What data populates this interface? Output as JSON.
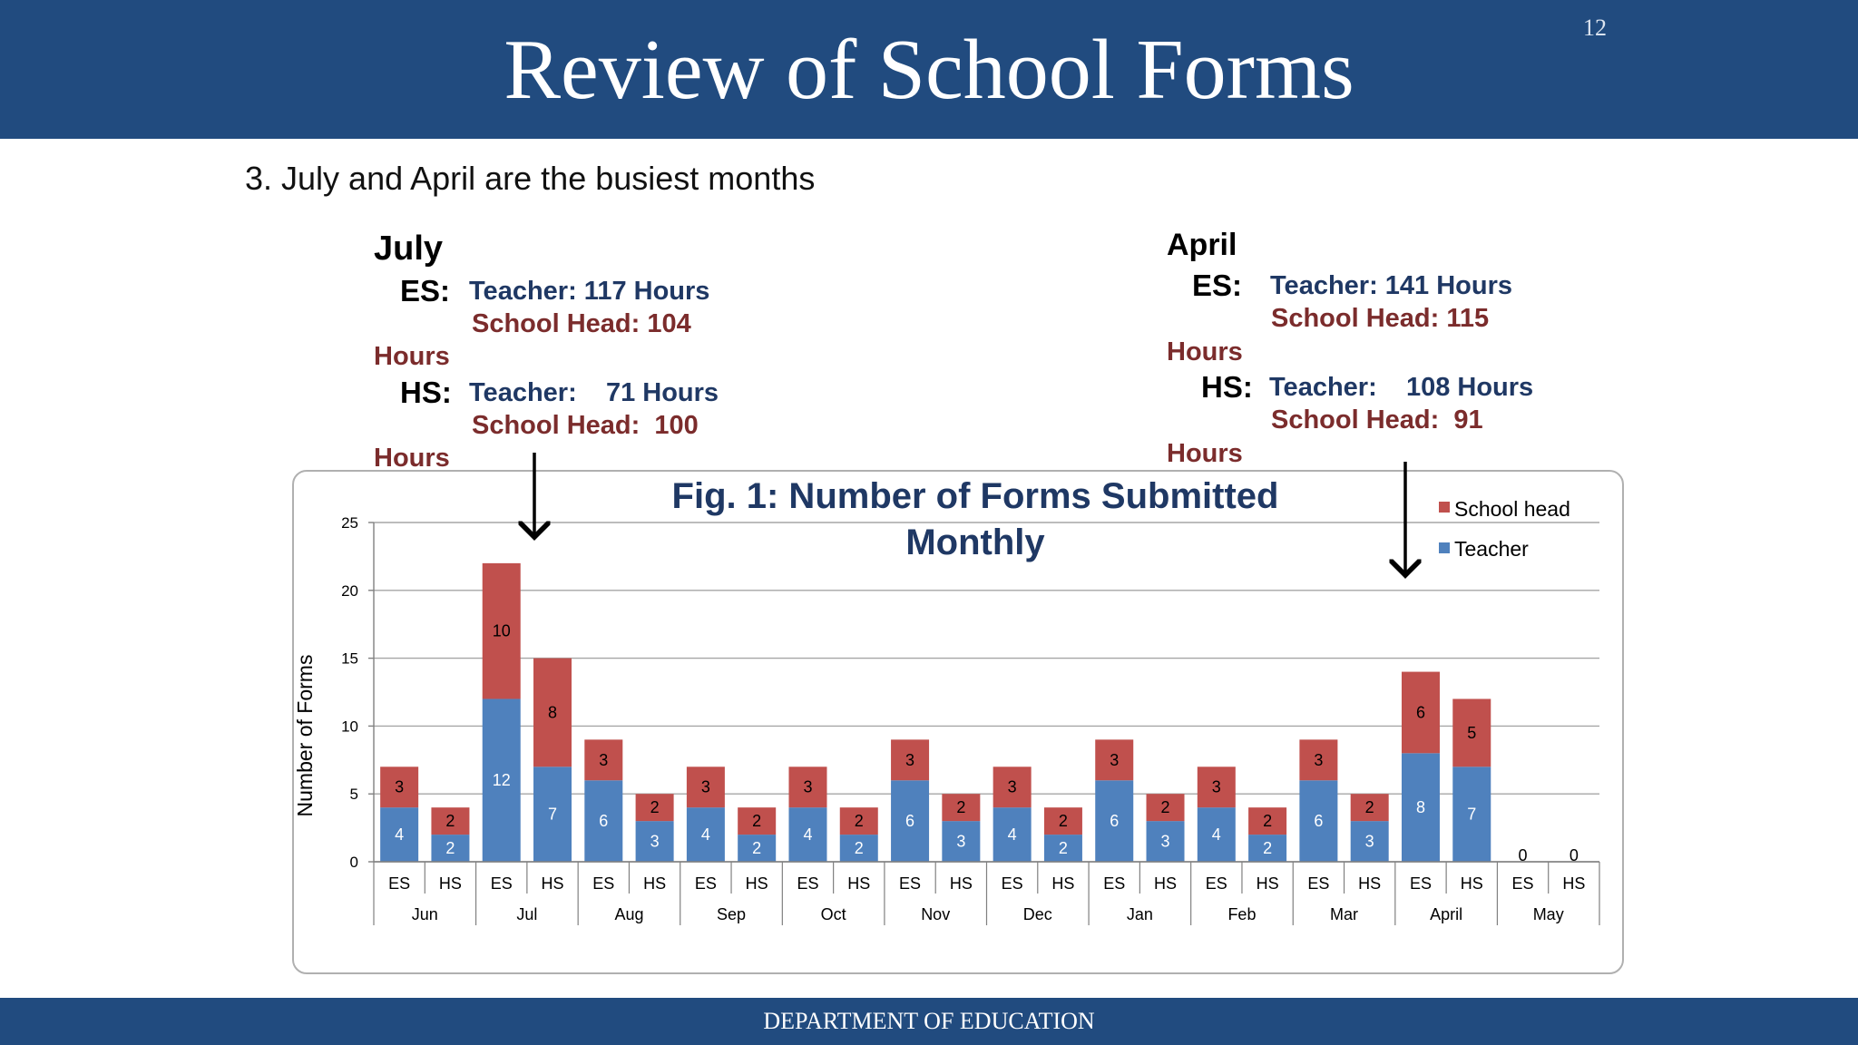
{
  "slide": {
    "title": "Review of School Forms",
    "number": "12",
    "bullet": "3.  July and April are the busiest months",
    "footer": "DEPARTMENT OF EDUCATION"
  },
  "annotations": {
    "july": {
      "month": "July",
      "es_label": "ES:",
      "es_teacher": "Teacher: 117 Hours",
      "es_head": "School Head: 104",
      "es_hours": "Hours",
      "hs_label": "HS:",
      "hs_teacher": "Teacher:    71 Hours",
      "hs_head": "School Head:  100",
      "hs_hours": "Hours"
    },
    "april": {
      "month": "April",
      "es_label": "ES:",
      "es_teacher": "Teacher: 141 Hours",
      "es_head": "School Head: 115",
      "es_hours": "Hours",
      "hs_label": "HS:",
      "hs_teacher": "Teacher:    108 Hours",
      "hs_head": "School Head:  91",
      "hs_hours": "Hours"
    }
  },
  "colors": {
    "header": "#214b7f",
    "teacher": "#4f81bd",
    "school_head": "#c0504d",
    "chart_title": "#1f3864"
  },
  "chart_data": {
    "type": "bar",
    "stacked": true,
    "title_lines": [
      "Fig. 1: Number of Forms Submitted",
      "Monthly"
    ],
    "ylabel": "Number of Forms",
    "xlabel": "",
    "ylim": [
      0,
      25
    ],
    "yticks": [
      0,
      5,
      10,
      15,
      20,
      25
    ],
    "grid": true,
    "legend_position": "top-right",
    "months": [
      "Jun",
      "Jul",
      "Aug",
      "Sep",
      "Oct",
      "Nov",
      "Dec",
      "Jan",
      "Feb",
      "Mar",
      "April",
      "May"
    ],
    "levels": [
      "ES",
      "HS"
    ],
    "categories": [
      "Jun ES",
      "Jun HS",
      "Jul ES",
      "Jul HS",
      "Aug ES",
      "Aug HS",
      "Sep ES",
      "Sep HS",
      "Oct ES",
      "Oct HS",
      "Nov ES",
      "Nov HS",
      "Dec ES",
      "Dec HS",
      "Jan ES",
      "Jan HS",
      "Feb ES",
      "Feb HS",
      "Mar ES",
      "Mar HS",
      "April ES",
      "April HS",
      "May ES",
      "May HS"
    ],
    "series": [
      {
        "name": "Teacher",
        "values": [
          4,
          2,
          12,
          7,
          6,
          3,
          4,
          2,
          4,
          2,
          6,
          3,
          4,
          2,
          6,
          3,
          4,
          2,
          6,
          3,
          8,
          7,
          0,
          0
        ]
      },
      {
        "name": "School head",
        "values": [
          3,
          2,
          10,
          8,
          3,
          2,
          3,
          2,
          3,
          2,
          3,
          2,
          3,
          2,
          3,
          2,
          3,
          2,
          3,
          2,
          6,
          5,
          0,
          0
        ]
      }
    ],
    "legend": [
      "School head",
      "Teacher"
    ]
  }
}
